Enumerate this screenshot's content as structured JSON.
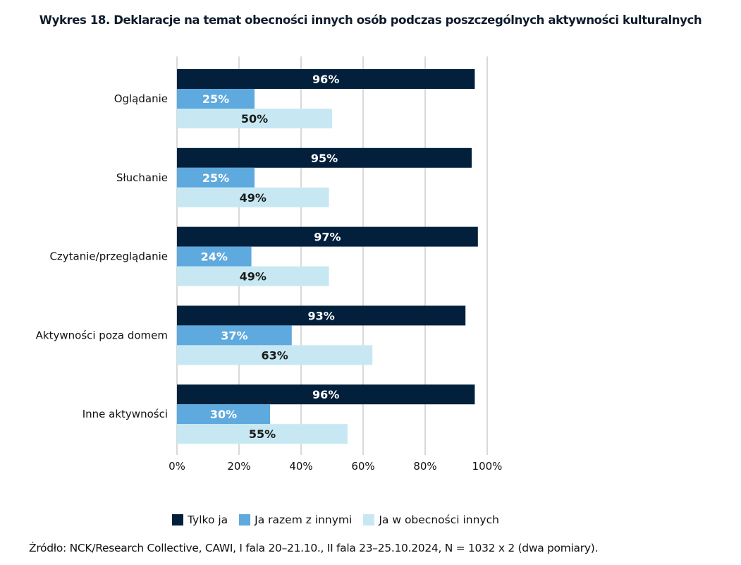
{
  "title": "Wykres 18. Deklaracje na temat obecności innych osób podczas poszczególnych aktywności kulturalnych",
  "source": "Źródło: NCK/Research Collective, CAWI, I fala 20–21.10., II fala 23–25.10.2024, N = 1032 x 2 (dwa pomiary).",
  "chart_data": {
    "type": "bar",
    "orientation": "horizontal",
    "title": "Wykres 18. Deklaracje na temat obecności innych osób podczas poszczególnych aktywności kulturalnych",
    "xlabel": "",
    "ylabel": "",
    "xlim": [
      0,
      100
    ],
    "x_ticks": [
      "0%",
      "20%",
      "40%",
      "60%",
      "80%",
      "100%"
    ],
    "grid": true,
    "legend_position": "bottom",
    "categories": [
      "Oglądanie",
      "Słuchanie",
      "Czytanie/przeglądanie",
      "Aktywności poza domem",
      "Inne aktywności"
    ],
    "series": [
      {
        "name": "Tylko ja",
        "color": "#02203c",
        "label_color": "#ffffff",
        "values": [
          96,
          95,
          97,
          93,
          96
        ]
      },
      {
        "name": "Ja razem z innymi",
        "color": "#5ea9de",
        "label_color": "#ffffff",
        "values": [
          25,
          25,
          24,
          37,
          30
        ]
      },
      {
        "name": "Ja w obecności innych",
        "color": "#c7e8f3",
        "label_color": "#1a1a1a",
        "values": [
          50,
          49,
          49,
          63,
          55
        ]
      }
    ],
    "value_suffix": "%"
  }
}
